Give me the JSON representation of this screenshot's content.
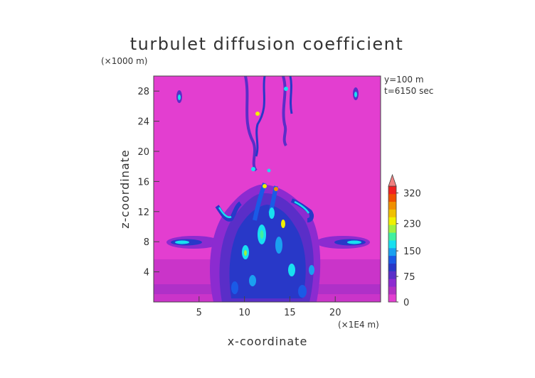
{
  "chart_data": {
    "type": "heatmap",
    "title": "turbulet diffusion coefficient",
    "xlabel": "x-coordinate",
    "ylabel": "z-coordinate",
    "x_unit": "(×1E4 m)",
    "y_unit": "(×1000 m)",
    "annotations": [
      "y=100 m",
      "t=6150 sec"
    ],
    "xlim": [
      0,
      25
    ],
    "ylim": [
      0,
      30
    ],
    "x_ticks": [
      5,
      10,
      15,
      20
    ],
    "y_ticks": [
      4,
      8,
      12,
      16,
      20,
      24,
      28
    ],
    "colorbar": {
      "ticks": [
        0,
        75,
        150,
        230,
        320
      ],
      "colors": [
        "#e33ed0",
        "#b22fc4",
        "#8c2bd0",
        "#5a2ec8",
        "#2838c8",
        "#1a5ae6",
        "#1aa0f0",
        "#18e0f0",
        "#40f0a0",
        "#a0f040",
        "#f0f000",
        "#f0c000",
        "#f09000",
        "#f05000",
        "#f02020"
      ],
      "extend": "max"
    },
    "background_value": "0",
    "features": [
      {
        "name": "central turbulent plume",
        "x_range": [
          7,
          18
        ],
        "z_range": [
          0,
          16
        ]
      },
      {
        "name": "left lateral jet",
        "x": 3,
        "z": 8
      },
      {
        "name": "right lateral jet",
        "x": 22,
        "z": 8
      },
      {
        "name": "upper filaments",
        "x_range": [
          10,
          15
        ],
        "z_range": [
          18,
          30
        ]
      },
      {
        "name": "left upper spot",
        "x": 3,
        "z": 27
      },
      {
        "name": "right upper spot",
        "x": 22,
        "z": 27.5
      }
    ]
  }
}
